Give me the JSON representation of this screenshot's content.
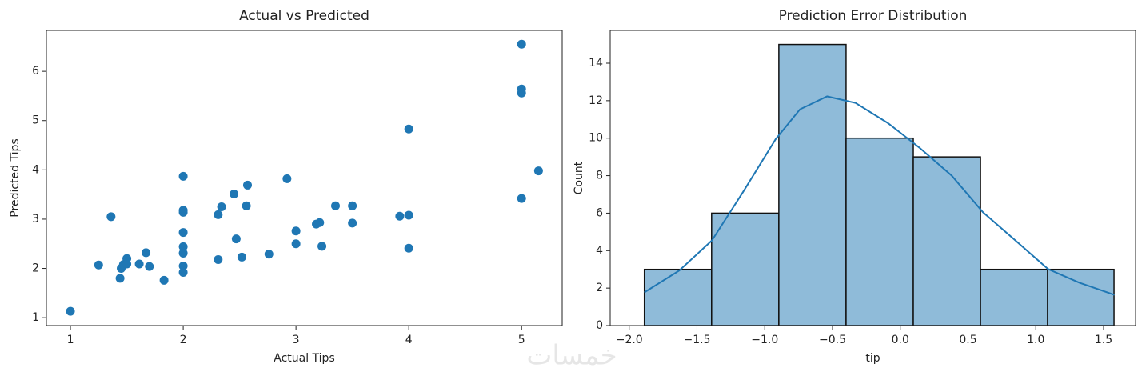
{
  "chart_data": [
    {
      "type": "scatter",
      "title": "Actual vs Predicted",
      "xlabel": "Actual Tips",
      "ylabel": "Predicted Tips",
      "color": "#1f77b4",
      "x": [
        1,
        1.25,
        1.36,
        1.44,
        1.45,
        1.47,
        1.5,
        1.5,
        1.61,
        1.67,
        1.7,
        1.83,
        2,
        2,
        2,
        2,
        2,
        2,
        2,
        2,
        2.31,
        2.31,
        2.34,
        2.45,
        2.47,
        2.52,
        2.56,
        2.57,
        2.76,
        2.92,
        3.0,
        3.0,
        3.18,
        3.21,
        3.23,
        3.35,
        3.5,
        3.5,
        3.92,
        4.0,
        4.0,
        4.0,
        5,
        5,
        5,
        5,
        5.15
      ],
      "values": [
        1.13,
        2.07,
        3.05,
        1.8,
        2.0,
        2.08,
        2.2,
        2.09,
        2.09,
        2.32,
        2.04,
        1.76,
        3.87,
        3.18,
        3.14,
        2.73,
        2.44,
        2.31,
        2.05,
        1.92,
        3.09,
        2.18,
        3.25,
        3.51,
        2.6,
        2.23,
        3.27,
        3.69,
        2.29,
        3.82,
        2.76,
        2.5,
        2.9,
        2.93,
        2.45,
        3.27,
        3.27,
        2.92,
        3.06,
        3.08,
        2.41,
        4.83,
        6.55,
        5.64,
        5.56,
        3.42,
        3.98
      ],
      "xlim": [
        0.787,
        5.36
      ],
      "ylim": [
        0.84,
        6.83
      ],
      "xticks": [
        1,
        2,
        3,
        4,
        5
      ],
      "yticks": [
        1,
        2,
        3,
        4,
        5,
        6
      ]
    },
    {
      "type": "histogram",
      "title": "Prediction Error Distribution",
      "xlabel": "tip",
      "ylabel": "Count",
      "color": "#8fbbd9",
      "edgecolor": "#111111",
      "bins": [
        -1.888,
        -1.392,
        -0.896,
        -0.4,
        0.096,
        0.592,
        1.087,
        1.577
      ],
      "values": [
        3,
        6,
        15,
        10,
        9,
        3,
        3
      ],
      "kde": {
        "x": [
          -1.888,
          -1.63,
          -1.39,
          -1.16,
          -0.92,
          -0.74,
          -0.54,
          -0.33,
          -0.09,
          0.14,
          0.38,
          0.61,
          0.85,
          1.09,
          1.32,
          1.58
        ],
        "values": [
          1.77,
          2.94,
          4.54,
          7.13,
          9.94,
          11.54,
          12.23,
          11.88,
          10.8,
          9.5,
          8.0,
          6.05,
          4.54,
          3.02,
          2.29,
          1.64
        ],
        "color": "#1f77b4"
      },
      "xlim": [
        -2.14,
        1.736
      ],
      "ylim": [
        0,
        15.75
      ],
      "xticks": [
        {
          "value": -2,
          "label": "−2.0"
        },
        {
          "value": -1.5,
          "label": "−1.5"
        },
        {
          "value": -1,
          "label": "−1.0"
        },
        {
          "value": -0.5,
          "label": "−0.5"
        },
        {
          "value": 0,
          "label": "0.0"
        },
        0.5,
        {
          "value": 1,
          "label": "1.0"
        },
        1.5
      ],
      "yticks": [
        0,
        2,
        4,
        6,
        8,
        10,
        12,
        14
      ]
    }
  ],
  "watermark": "خمسات"
}
